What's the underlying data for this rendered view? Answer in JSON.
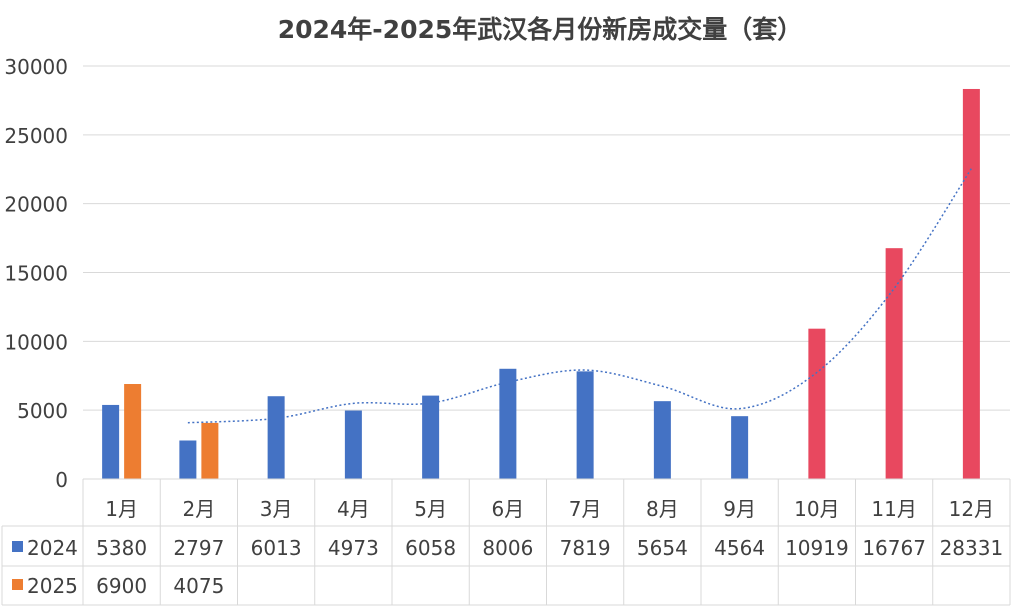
{
  "chart_data": {
    "type": "bar",
    "title": "2024年-2025年武汉各月份新房成交量（套）",
    "categories": [
      "1月",
      "2月",
      "3月",
      "4月",
      "5月",
      "6月",
      "7月",
      "8月",
      "9月",
      "10月",
      "11月",
      "12月"
    ],
    "series": [
      {
        "name": "2024",
        "values": [
          5380,
          2797,
          6013,
          4973,
          6058,
          8006,
          7819,
          5654,
          4564,
          10919,
          16767,
          28331
        ],
        "colors": [
          "#4472C4",
          "#4472C4",
          "#4472C4",
          "#4472C4",
          "#4472C4",
          "#4472C4",
          "#4472C4",
          "#4472C4",
          "#4472C4",
          "#E8485F",
          "#E8485F",
          "#E8485F"
        ]
      },
      {
        "name": "2025",
        "values": [
          6900,
          4075,
          null,
          null,
          null,
          null,
          null,
          null,
          null,
          null,
          null,
          null
        ],
        "colors": [
          "#ED7D31",
          "#ED7D31"
        ]
      }
    ],
    "trendline": {
      "series": "2024",
      "style": "dotted",
      "color": "#4472C4",
      "type": "moving-average",
      "period": 2
    },
    "ylim": [
      0,
      30000
    ],
    "yticks": [
      0,
      5000,
      10000,
      15000,
      20000,
      25000,
      30000
    ],
    "grid": true,
    "legend": "data-table",
    "data_table": true
  }
}
